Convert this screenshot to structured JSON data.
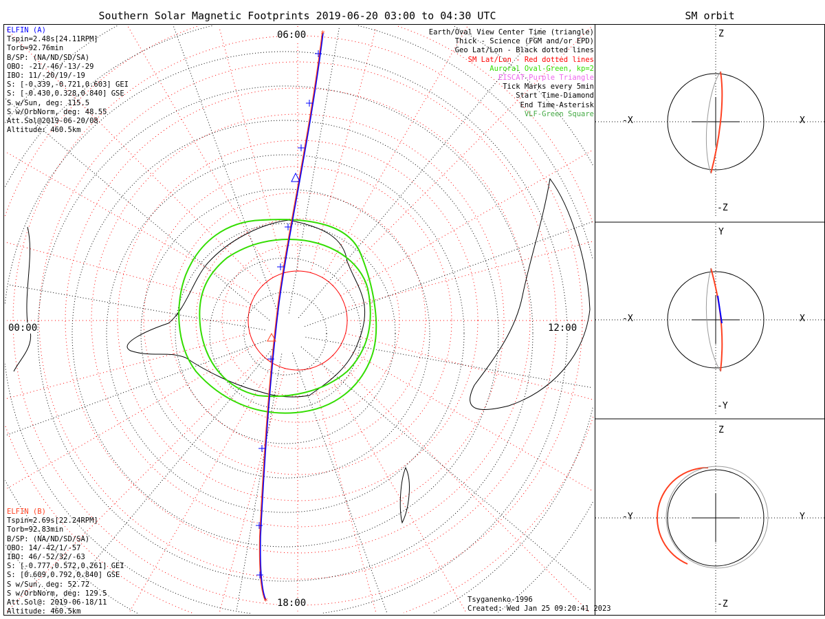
{
  "title": "Southern Solar Magnetic Footprints 2019-06-20 03:00 to 04:30 UTC",
  "orbit_panel_title": "SM orbit",
  "colors": {
    "elfin_a": "#0000ff",
    "elfin_b": "#ff4020",
    "sm_grid": "#ff0000",
    "oval": "#33dd00",
    "eiscat": "#ee66ee",
    "vlf": "#44aa44"
  },
  "elfin_a": {
    "name": "ELFIN (A)",
    "lines": [
      "Tspin=2.48s[24.11RPM]",
      "Torb=92.76min",
      "B/SP: (NA/ND/SD/SA)",
      "OBO: -21/-46/-13/-29",
      "IBO: 11/-20/19/-19",
      "S: [-0.339,-0.721,0.603] GEI",
      "S: [-0.430,0.328,0.840] GSE",
      "S w/Sun, deg: 115.5",
      "S w/OrbNorm, deg: 48.55",
      "Att.Sol@2019-06-20/08",
      "Altitude: 460.5km"
    ]
  },
  "elfin_b": {
    "name": "ELFIN (B)",
    "lines": [
      "Tspin=2.69s[22.24RPM]",
      "Torb=92.83min",
      "B/SP: (NA/ND/SD/SA)",
      "OBO: 14/-42/1/-57",
      "IBO: 46/-52/32/-63",
      "S: [-0.777,0.572,0.261] GEI",
      "S: [0.609,0.792,0.840] GSE",
      "S w/Sun, deg: 52.72",
      "S w/OrbNorm, deg: 129.5",
      "Att.Sol@: 2019-06-18/11",
      "Altitude: 460.5km"
    ]
  },
  "legend": [
    {
      "text": "Earth/Oval View Center Time (triangle)",
      "color": "#000000"
    },
    {
      "text": "Thick - Science (FGM and/or EPD)",
      "color": "#000000"
    },
    {
      "text": "Geo Lat/Lon - Black dotted lines",
      "color": "#000000"
    },
    {
      "text": "SM Lat/Lon - Red dotted lines",
      "color": "#ff0000"
    },
    {
      "text": "Auroral Oval-Green, kp=2",
      "color": "#33dd00"
    },
    {
      "text": "EISCAT-Purple Triangle",
      "color": "#ee66ee"
    },
    {
      "text": "Tick Marks every 5min",
      "color": "#000000"
    },
    {
      "text": "Start Time-Diamond",
      "color": "#000000"
    },
    {
      "text": "End Time-Asterisk",
      "color": "#000000"
    },
    {
      "text": "VLF-Green Square",
      "color": "#44aa44"
    }
  ],
  "mlt_labels": {
    "top": "06:00",
    "left": "00:00",
    "right": "12:00",
    "bottom": "18:00"
  },
  "footer": {
    "model": "Tsyganenko-1996",
    "created": "Created: Wed Jan 25 09:20:41 2023"
  },
  "orbit_panels": [
    {
      "up": "Z",
      "down": "-Z",
      "left": "-X",
      "right": "X"
    },
    {
      "up": "Y",
      "down": "-Y",
      "left": "-X",
      "right": "X"
    },
    {
      "up": "Z",
      "down": "-Z",
      "left": "-Y",
      "right": "Y"
    }
  ]
}
